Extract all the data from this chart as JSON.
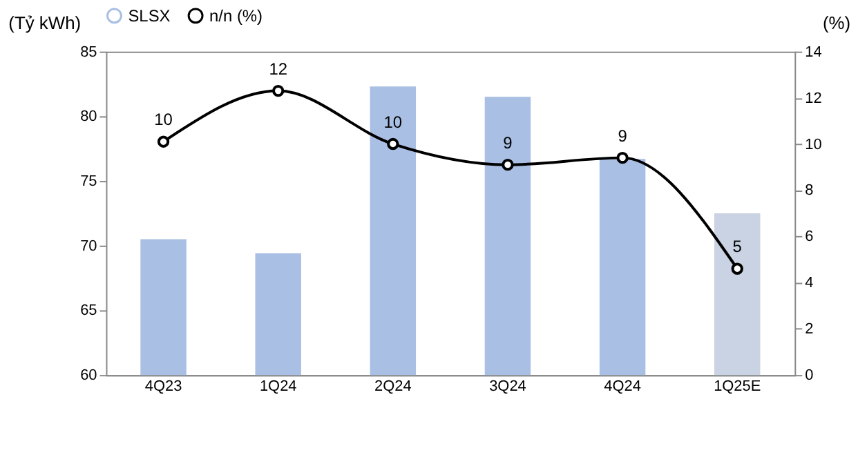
{
  "chart_data": {
    "type": "bar",
    "categories": [
      "4Q23",
      "1Q24",
      "2Q24",
      "3Q24",
      "4Q24",
      "1Q25E"
    ],
    "ylabel": "(Tỷ kWh)",
    "y2label": "(%)",
    "ylim": [
      60,
      85
    ],
    "yticks": [
      60,
      65,
      70,
      75,
      80,
      85
    ],
    "y2lim": [
      0,
      14
    ],
    "y2ticks": [
      0,
      2,
      4,
      6,
      8,
      10,
      12,
      14
    ],
    "series": [
      {
        "name": "SLSX",
        "color": "#a9bfe3",
        "colors": [
          "#a9bfe3",
          "#a9bfe3",
          "#a9bfe3",
          "#a9bfe3",
          "#a9bfe3",
          "#c9d3e3"
        ],
        "values": [
          70.5,
          69.4,
          82.3,
          81.5,
          76.7,
          72.5
        ]
      },
      {
        "name": "n/n (%)",
        "type": "line",
        "axis": "y2",
        "color": "#000000",
        "marker": "circle",
        "values": [
          10.1,
          12.3,
          10.0,
          9.1,
          9.4,
          4.6
        ],
        "value_labels": [
          "10",
          "12",
          "10",
          "9",
          "9",
          "5"
        ]
      }
    ],
    "legend": "top",
    "grid": false
  }
}
